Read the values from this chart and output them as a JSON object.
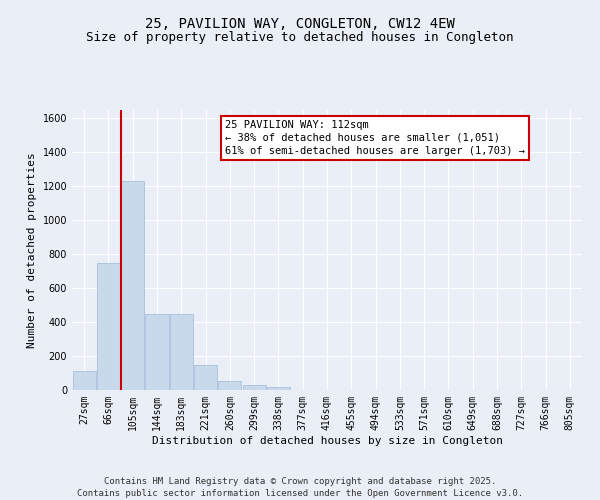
{
  "title_line1": "25, PAVILION WAY, CONGLETON, CW12 4EW",
  "title_line2": "Size of property relative to detached houses in Congleton",
  "xlabel": "Distribution of detached houses by size in Congleton",
  "ylabel": "Number of detached properties",
  "categories": [
    "27sqm",
    "66sqm",
    "105sqm",
    "144sqm",
    "183sqm",
    "221sqm",
    "260sqm",
    "299sqm",
    "338sqm",
    "377sqm",
    "416sqm",
    "455sqm",
    "494sqm",
    "533sqm",
    "571sqm",
    "610sqm",
    "649sqm",
    "688sqm",
    "727sqm",
    "766sqm",
    "805sqm"
  ],
  "values": [
    110,
    750,
    1230,
    450,
    450,
    150,
    55,
    30,
    15,
    0,
    0,
    0,
    0,
    0,
    0,
    0,
    0,
    0,
    0,
    0,
    0
  ],
  "bar_color": "#c9d9ec",
  "bar_edge_color": "#a0b8d8",
  "vline_color": "#cc0000",
  "vline_index": 2,
  "ylim": [
    0,
    1650
  ],
  "yticks": [
    0,
    200,
    400,
    600,
    800,
    1000,
    1200,
    1400,
    1600
  ],
  "annotation_text": "25 PAVILION WAY: 112sqm\n← 38% of detached houses are smaller (1,051)\n61% of semi-detached houses are larger (1,703) →",
  "annotation_box_color": "#ffffff",
  "annotation_box_edge": "#cc0000",
  "footer_line1": "Contains HM Land Registry data © Crown copyright and database right 2025.",
  "footer_line2": "Contains public sector information licensed under the Open Government Licence v3.0.",
  "background_color": "#eaeff7",
  "plot_bg_color": "#eaeff7",
  "grid_color": "#ffffff",
  "title_fontsize": 10,
  "subtitle_fontsize": 9,
  "axis_label_fontsize": 8,
  "tick_fontsize": 7,
  "annotation_fontsize": 7.5,
  "footer_fontsize": 6.5
}
